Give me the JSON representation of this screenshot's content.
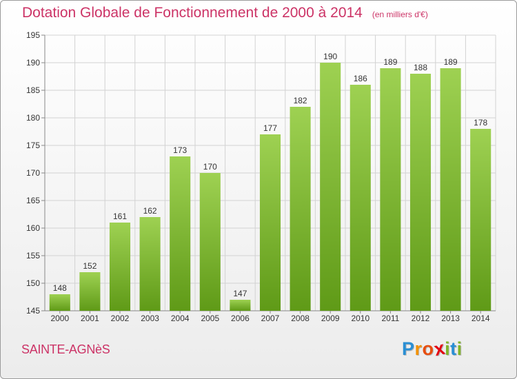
{
  "chart_data": {
    "type": "bar",
    "title": "Dotation Globale de Fonctionnement de 2000 à 2014",
    "subtitle": "(en milliers d'€)",
    "categories": [
      "2000",
      "2001",
      "2002",
      "2003",
      "2004",
      "2005",
      "2006",
      "2007",
      "2008",
      "2009",
      "2010",
      "2011",
      "2012",
      "2013",
      "2014"
    ],
    "values": [
      148,
      152,
      161,
      162,
      173,
      170,
      147,
      177,
      182,
      190,
      186,
      189,
      188,
      189,
      178
    ],
    "ylim": [
      145,
      195
    ],
    "yticks": [
      145,
      150,
      155,
      160,
      165,
      170,
      175,
      180,
      185,
      190,
      195
    ],
    "grid": true,
    "bar_color": "#7ab82e"
  },
  "footer": {
    "commune": "SAINTE-AGNèS",
    "brand": {
      "letters": [
        "P",
        "r",
        "o",
        "x",
        "i",
        "t",
        "i"
      ],
      "colors": [
        "#2a8fd4",
        "#f39200",
        "#e84e0f",
        "#e30613",
        "#82b529",
        "#2a8fd4",
        "#82b529"
      ]
    }
  }
}
